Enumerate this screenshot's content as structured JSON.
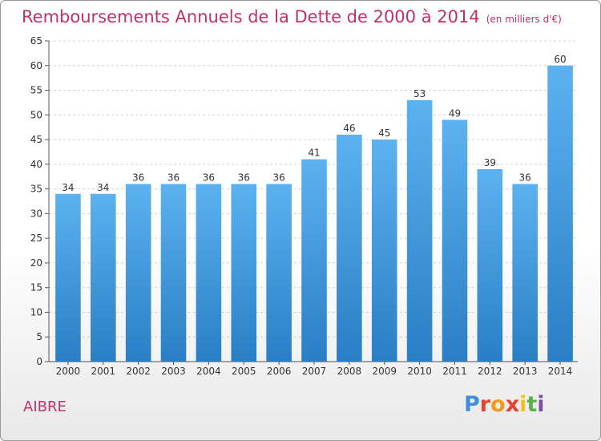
{
  "title": "Remboursements Annuels de la Dette de 2000 à 2014",
  "subtitle": "(en milliers d'€)",
  "commune": "AIBRE",
  "logo": {
    "text": "Proxiti",
    "letter_colors": [
      "#3f8fd6",
      "#e8412c",
      "#f39a1e",
      "#e8412c",
      "#f1c21b",
      "#5bb04a",
      "#7f4ea3"
    ]
  },
  "colors": {
    "bar_top": "#5cb2f0",
    "bar_bottom": "#2a7ec4",
    "title": "#c0306a",
    "label": "#333333",
    "grid": "#d0d0d0"
  },
  "chart_data": {
    "type": "bar",
    "title": "Remboursements Annuels de la Dette de 2000 à 2014",
    "subtitle": "(en milliers d'€)",
    "xlabel": "",
    "ylabel": "",
    "categories": [
      "2000",
      "2001",
      "2002",
      "2003",
      "2004",
      "2005",
      "2006",
      "2007",
      "2008",
      "2009",
      "2010",
      "2011",
      "2012",
      "2013",
      "2014"
    ],
    "values": [
      34,
      34,
      36,
      36,
      36,
      36,
      36,
      41,
      46,
      45,
      53,
      49,
      39,
      36,
      60
    ],
    "ylim": [
      0,
      65
    ],
    "yticks": [
      0,
      5,
      10,
      15,
      20,
      25,
      30,
      35,
      40,
      45,
      50,
      55,
      60,
      65
    ],
    "grid": "horizontal dashed",
    "legend": "none"
  }
}
